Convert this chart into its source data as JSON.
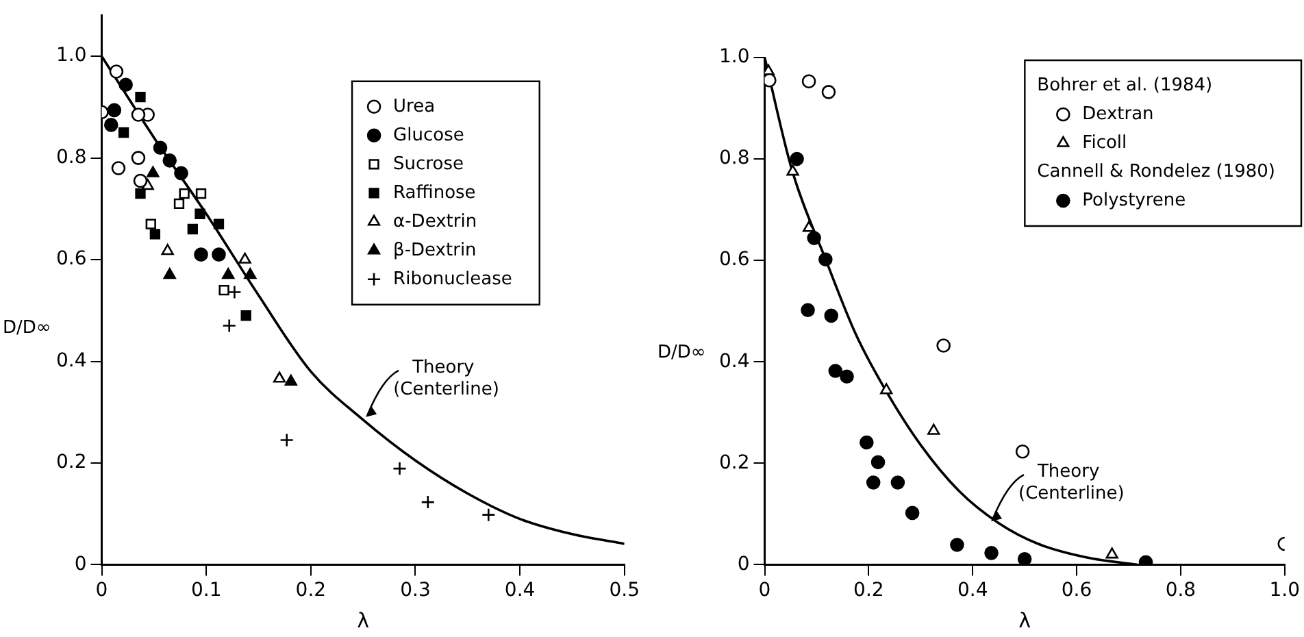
{
  "chart_data": [
    {
      "type": "scatter",
      "xlabel": "λ",
      "ylabel": "D/D∞",
      "xlim": [
        0,
        0.5
      ],
      "ylim": [
        0,
        1.08
      ],
      "xticks": [
        0,
        0.1,
        0.2,
        0.3,
        0.4,
        0.5
      ],
      "yticks": [
        0,
        0.2,
        0.4,
        0.6,
        0.8,
        {
          "value": 1,
          "label": "1.0"
        }
      ],
      "grid": false,
      "legend": "top right",
      "annotations": [
        {
          "text": "Theory\n(Centerline)",
          "x": 0.25,
          "y": 0.285
        }
      ],
      "series": [
        {
          "name": "Urea",
          "color": "#ffffff",
          "marker": "circle",
          "x": [
            0,
            0.014,
            0.016,
            0.035,
            0.044,
            0.035,
            0.037
          ],
          "values": [
            0.89,
            0.97,
            0.78,
            0.8,
            0.885,
            0.885,
            0.755
          ]
        },
        {
          "name": "Glucose",
          "color": "#000000",
          "marker": "circle",
          "x": [
            0.023,
            0.012,
            0.056,
            0.065,
            0.076,
            0.095,
            0.112,
            0.009
          ],
          "values": [
            0.944,
            0.894,
            0.82,
            0.795,
            0.77,
            0.61,
            0.61,
            0.865
          ]
        },
        {
          "name": "Sucrose",
          "color": "#ffffff",
          "marker": "square",
          "x": [
            0.079,
            0.095,
            0.047,
            0.074,
            0.117
          ],
          "values": [
            0.73,
            0.73,
            0.67,
            0.71,
            0.54
          ]
        },
        {
          "name": "Raffinose",
          "color": "#000000",
          "marker": "square",
          "x": [
            0.037,
            0.021,
            0.037,
            0.051,
            0.087,
            0.094,
            0.112,
            0.138
          ],
          "values": [
            0.92,
            0.85,
            0.73,
            0.65,
            0.66,
            0.69,
            0.67,
            0.49
          ]
        },
        {
          "name": "α-Dextrin",
          "color": "#ffffff",
          "marker": "triangle",
          "x": [
            0.063,
            0.137,
            0.17,
            0.044
          ],
          "values": [
            0.617,
            0.6,
            0.366,
            0.745
          ]
        },
        {
          "name": "β-Dextrin",
          "color": "#000000",
          "marker": "triangle",
          "x": [
            0.065,
            0.142,
            0.121,
            0.181,
            0.049
          ],
          "values": [
            0.57,
            0.57,
            0.57,
            0.36,
            0.77
          ]
        },
        {
          "name": "Ribonuclease",
          "color": "#000000",
          "marker": "cross",
          "x": [
            0.127,
            0.122,
            0.177,
            0.285,
            0.312,
            0.37
          ],
          "values": [
            0.536,
            0.47,
            0.245,
            0.189,
            0.123,
            0.098
          ]
        },
        {
          "type": "line",
          "color": "#000000",
          "marker": "none",
          "x": [
            0,
            0.05,
            0.1,
            0.15,
            0.2,
            0.25,
            0.3,
            0.35,
            0.4,
            0.45,
            0.5
          ],
          "values": [
            1.0,
            0.84,
            0.69,
            0.53,
            0.38,
            0.285,
            0.205,
            0.14,
            0.09,
            0.06,
            0.041
          ]
        }
      ]
    },
    {
      "type": "scatter",
      "xlabel": "λ",
      "ylabel": "D/D∞",
      "xlim": [
        0,
        1.0
      ],
      "ylim": [
        0,
        1.0
      ],
      "xticks": [
        0,
        0.2,
        0.4,
        0.6,
        0.8,
        {
          "value": 1,
          "label": "1.0"
        }
      ],
      "yticks": [
        0,
        0.2,
        0.4,
        0.6,
        0.8,
        {
          "value": 1,
          "label": "1.0"
        }
      ],
      "grid": false,
      "legend": "top right",
      "annotations": [
        "Bohrer et al. (1984)",
        "Cannell & Rondelez (1980)",
        {
          "text": "Theory\n(Centerline)",
          "x": 0.43,
          "y": 0.08
        }
      ],
      "series": [
        {
          "name": "Dextran",
          "color": "#ffffff",
          "marker": "circle",
          "x": [
            0.009,
            0.085,
            0.123,
            0.344,
            0.496,
            1.0
          ],
          "values": [
            0.955,
            0.953,
            0.932,
            0.432,
            0.223,
            0.041
          ]
        },
        {
          "name": "Ficoll",
          "color": "#ffffff",
          "marker": "triangle",
          "x": [
            0.007,
            0.054,
            0.085,
            0.234,
            0.325,
            0.668
          ],
          "values": [
            0.973,
            0.775,
            0.664,
            0.344,
            0.264,
            0.02
          ]
        },
        {
          "name": "Polystyrene",
          "color": "#000000",
          "marker": "circle",
          "x": [
            0.062,
            0.095,
            0.117,
            0.083,
            0.128,
            0.136,
            0.158,
            0.196,
            0.218,
            0.209,
            0.256,
            0.284,
            0.37,
            0.436,
            0.5,
            0.733
          ],
          "values": [
            0.8,
            0.644,
            0.602,
            0.502,
            0.491,
            0.382,
            0.371,
            0.241,
            0.202,
            0.162,
            0.162,
            0.102,
            0.039,
            0.023,
            0.011,
            0.005
          ]
        },
        {
          "type": "line",
          "color": "#000000",
          "marker": "none",
          "x": [
            0,
            0.052,
            0.118,
            0.175,
            0.232,
            0.3,
            0.374,
            0.45,
            0.526,
            0.62,
            0.716
          ],
          "values": [
            1.0,
            0.78,
            0.6,
            0.455,
            0.345,
            0.236,
            0.145,
            0.082,
            0.041,
            0.014,
            0.0
          ]
        }
      ]
    }
  ]
}
